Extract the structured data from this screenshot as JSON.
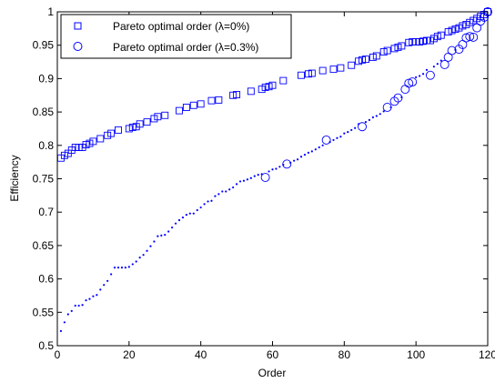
{
  "chart_data": {
    "type": "scatter",
    "xlabel": "Order",
    "ylabel": "Efficiency",
    "xlim": [
      0,
      120
    ],
    "ylim": [
      0.5,
      1
    ],
    "xticks": [
      "0",
      "20",
      "40",
      "60",
      "80",
      "100",
      "120"
    ],
    "yticks": [
      "0.5",
      "0.55",
      "0.6",
      "0.65",
      "0.7",
      "0.75",
      "0.8",
      "0.85",
      "0.9",
      "0.95",
      "1"
    ],
    "grid": false,
    "legend_position": "top-left",
    "marker_color": "#0000ff",
    "series": [
      {
        "name": "Pareto optimal order (λ=0%)",
        "marker": "square",
        "x": [
          1,
          2,
          3,
          4,
          5,
          6,
          7,
          8,
          9,
          10,
          12,
          14,
          15,
          17,
          20,
          21,
          22,
          23,
          25,
          27,
          28,
          30,
          34,
          36,
          38,
          40,
          43,
          45,
          49,
          50,
          54,
          57,
          58,
          59,
          60,
          63,
          68,
          70,
          71,
          74,
          77,
          79,
          82,
          84,
          85,
          86,
          88,
          89,
          91,
          92,
          94,
          95,
          96,
          98,
          99,
          100,
          101,
          102,
          103,
          104,
          105,
          106,
          107,
          109,
          110,
          111,
          112,
          113,
          114,
          115,
          116,
          117,
          118,
          119,
          120
        ],
        "y": [
          0.781,
          0.785,
          0.788,
          0.793,
          0.797,
          0.797,
          0.797,
          0.801,
          0.803,
          0.806,
          0.81,
          0.815,
          0.818,
          0.823,
          0.825,
          0.827,
          0.828,
          0.832,
          0.835,
          0.84,
          0.843,
          0.845,
          0.852,
          0.857,
          0.86,
          0.862,
          0.867,
          0.868,
          0.875,
          0.876,
          0.881,
          0.884,
          0.887,
          0.888,
          0.89,
          0.897,
          0.905,
          0.907,
          0.908,
          0.912,
          0.914,
          0.916,
          0.92,
          0.926,
          0.928,
          0.929,
          0.932,
          0.934,
          0.94,
          0.942,
          0.945,
          0.947,
          0.949,
          0.954,
          0.955,
          0.955,
          0.955,
          0.956,
          0.957,
          0.957,
          0.96,
          0.963,
          0.965,
          0.97,
          0.972,
          0.974,
          0.976,
          0.979,
          0.981,
          0.984,
          0.987,
          0.99,
          0.993,
          0.996,
          1.0
        ]
      },
      {
        "name": "Pareto optimal order (λ=0.3%)",
        "marker": "circle",
        "x": [
          58,
          64,
          75,
          85,
          92,
          94,
          95,
          97,
          98,
          99,
          104,
          108,
          109,
          110,
          112,
          113,
          114,
          115,
          116,
          117,
          118,
          119,
          120
        ],
        "y": [
          0.752,
          0.772,
          0.808,
          0.828,
          0.857,
          0.866,
          0.871,
          0.884,
          0.893,
          0.895,
          0.905,
          0.921,
          0.932,
          0.942,
          0.944,
          0.951,
          0.961,
          0.963,
          0.962,
          0.976,
          0.986,
          0.992,
          1.0
        ]
      },
      {
        "name": "",
        "marker": "dot",
        "x": [
          1,
          2,
          3,
          4,
          5,
          6,
          7,
          8,
          9,
          10,
          11,
          12,
          13,
          14,
          15,
          16,
          17,
          18,
          19,
          20,
          21,
          22,
          23,
          24,
          25,
          26,
          27,
          28,
          29,
          30,
          31,
          32,
          33,
          34,
          35,
          36,
          37,
          38,
          39,
          40,
          41,
          42,
          43,
          44,
          45,
          46,
          47,
          48,
          49,
          50,
          51,
          52,
          53,
          54,
          55,
          56,
          57,
          59,
          60,
          61,
          62,
          63,
          65,
          66,
          67,
          68,
          69,
          70,
          71,
          72,
          73,
          74,
          76,
          77,
          78,
          79,
          80,
          81,
          82,
          83,
          84,
          86,
          87,
          88,
          89,
          90,
          91,
          93,
          96,
          100,
          101,
          102,
          103,
          105,
          106,
          107,
          111
        ],
        "y": [
          0.522,
          0.535,
          0.547,
          0.552,
          0.56,
          0.56,
          0.561,
          0.568,
          0.57,
          0.574,
          0.576,
          0.584,
          0.591,
          0.597,
          0.607,
          0.617,
          0.617,
          0.617,
          0.617,
          0.618,
          0.622,
          0.626,
          0.632,
          0.636,
          0.642,
          0.649,
          0.656,
          0.664,
          0.665,
          0.666,
          0.671,
          0.677,
          0.683,
          0.688,
          0.692,
          0.696,
          0.698,
          0.698,
          0.703,
          0.707,
          0.712,
          0.716,
          0.717,
          0.724,
          0.727,
          0.731,
          0.731,
          0.734,
          0.737,
          0.742,
          0.746,
          0.747,
          0.749,
          0.751,
          0.754,
          0.756,
          0.757,
          0.761,
          0.764,
          0.765,
          0.768,
          0.771,
          0.774,
          0.777,
          0.779,
          0.783,
          0.786,
          0.789,
          0.791,
          0.794,
          0.797,
          0.8,
          0.805,
          0.808,
          0.811,
          0.813,
          0.818,
          0.82,
          0.823,
          0.826,
          0.832,
          0.835,
          0.838,
          0.842,
          0.844,
          0.847,
          0.851,
          0.857,
          0.872,
          0.902,
          0.904,
          0.907,
          0.913,
          0.918,
          0.922,
          0.927,
          0.943
        ]
      }
    ]
  }
}
